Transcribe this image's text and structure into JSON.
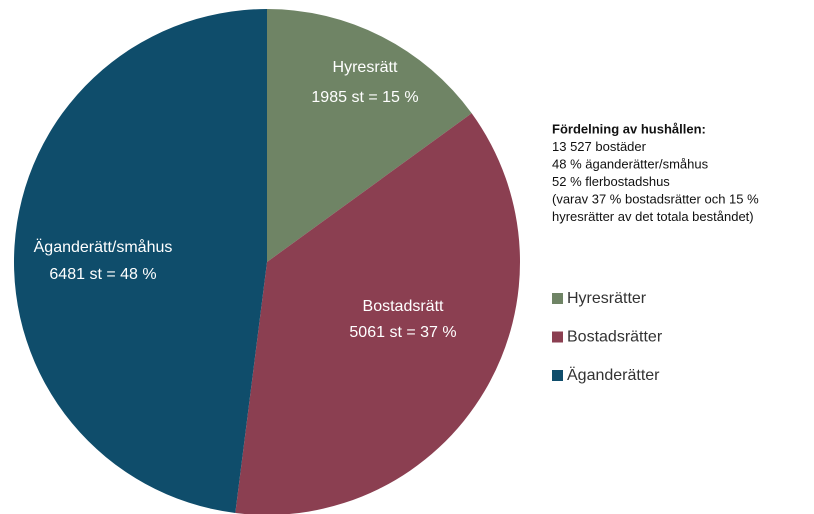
{
  "chart_data": {
    "type": "pie",
    "categories": [
      "Hyresrätt",
      "Bostadsrätt",
      "Äganderätt/småhus"
    ],
    "values": [
      15,
      37,
      48
    ],
    "value_labels": [
      "1985 st = 15 %",
      "5061 st = 37 %",
      "6481 st = 48 %"
    ],
    "colors": [
      "#6f8465",
      "#8b3f51",
      "#0f4d6b"
    ],
    "legend": [
      "Hyresrätter",
      "Bostadsrätter",
      "Äganderätter"
    ],
    "annotation": {
      "title": "Fördelning av hushållen:",
      "lines": [
        "13 527 bostäder",
        "48 % äganderätter/småhus",
        "52 % flerbostadshus",
        "(varav 37 % bostadsrätter och 15 %",
        "hyresrätter av det totala beståndet)"
      ]
    }
  }
}
